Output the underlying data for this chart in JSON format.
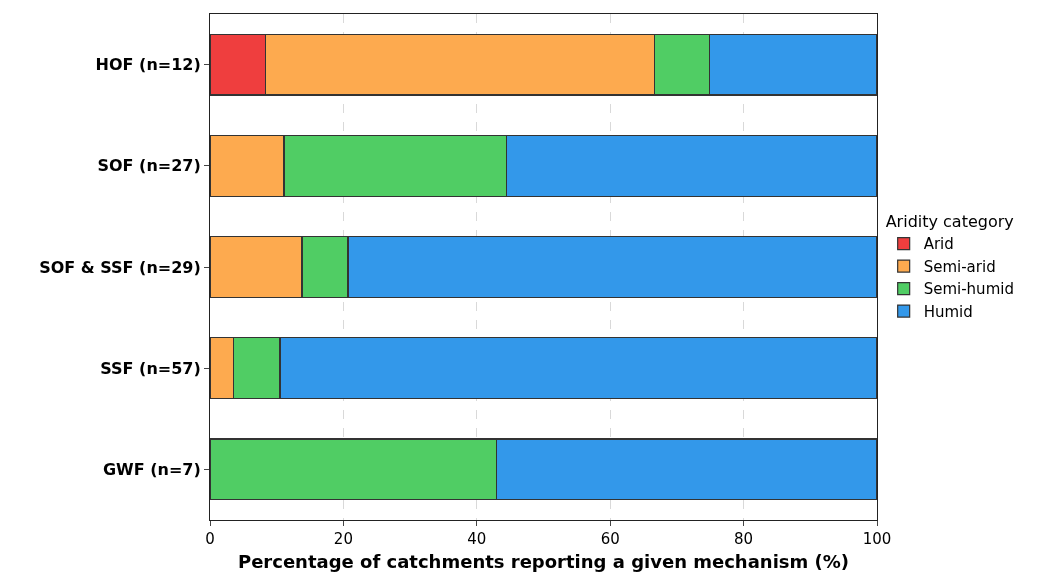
{
  "chart_data": {
    "type": "bar",
    "orientation": "horizontal",
    "stacked": true,
    "xlabel": "Percentage of catchments reporting a given mechanism (%)",
    "legend_title": "Aridity category",
    "categories": [
      "HOF (n=12)",
      "SOF (n=27)",
      "SOF & SSF (n=29)",
      "SSF (n=57)",
      "GWF (n=7)"
    ],
    "series": [
      {
        "name": "Arid",
        "color": "#ef3e3e",
        "values": [
          8.3,
          null,
          null,
          null,
          null
        ]
      },
      {
        "name": "Semi-arid",
        "color": "#fdaa4f",
        "values": [
          58.3,
          11.1,
          13.8,
          3.5,
          null
        ]
      },
      {
        "name": "Semi-humid",
        "color": "#50cd64",
        "values": [
          8.3,
          33.3,
          6.9,
          7.0,
          42.9
        ]
      },
      {
        "name": "Humid",
        "color": "#3398ea",
        "values": [
          25.0,
          55.6,
          79.3,
          89.5,
          57.1
        ]
      }
    ],
    "xlim": [
      0,
      100
    ],
    "xticks": [
      0,
      20,
      40,
      60,
      80,
      100
    ],
    "grid": "x",
    "legend": "right"
  }
}
